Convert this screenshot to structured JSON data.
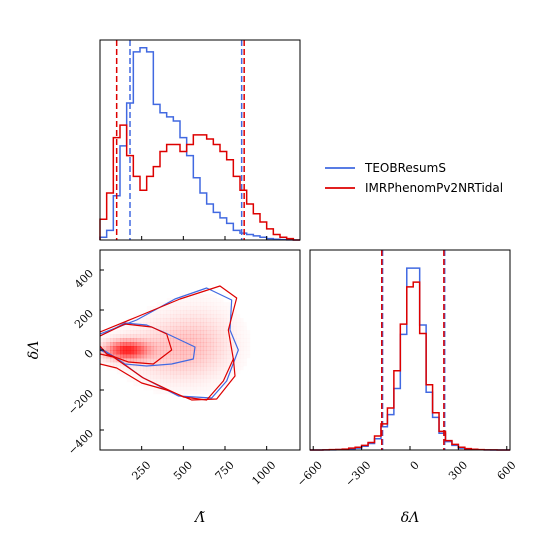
{
  "chart_data": [
    {
      "panel": "top-left",
      "type": "histogram",
      "x_param": "Λ̃",
      "xlim": [
        0,
        1200
      ],
      "xticks": [
        250,
        500,
        750,
        1000
      ],
      "bin_edges": [
        0,
        40,
        80,
        120,
        160,
        200,
        240,
        280,
        320,
        360,
        400,
        440,
        480,
        520,
        560,
        600,
        640,
        680,
        720,
        760,
        800,
        840,
        880,
        920,
        960,
        1000,
        1040,
        1080,
        1120,
        1160,
        1200
      ],
      "series": [
        {
          "name": "TEOBResumS",
          "color": "#4169e1",
          "values": [
            0.02,
            0.07,
            0.32,
            0.68,
            0.99,
            1.36,
            1.39,
            1.36,
            0.98,
            0.92,
            0.89,
            0.86,
            0.74,
            0.61,
            0.45,
            0.34,
            0.26,
            0.2,
            0.16,
            0.12,
            0.07,
            0.05,
            0.04,
            0.03,
            0.02,
            0.01,
            0.005,
            0.003,
            0.001,
            0.0
          ],
          "quantiles": [
            180,
            850
          ]
        },
        {
          "name": "IMRPhenomPv2NRTidal",
          "color": "#dd0000",
          "values": [
            0.15,
            0.34,
            0.74,
            0.83,
            0.61,
            0.46,
            0.36,
            0.46,
            0.53,
            0.64,
            0.69,
            0.69,
            0.64,
            0.69,
            0.76,
            0.76,
            0.73,
            0.69,
            0.64,
            0.58,
            0.46,
            0.36,
            0.26,
            0.19,
            0.13,
            0.08,
            0.04,
            0.02,
            0.01,
            0.0
          ],
          "values_note": "",
          "quantiles": [
            100,
            865
          ]
        }
      ]
    },
    {
      "panel": "bottom-left",
      "type": "contour",
      "xlabel": "Λ̃",
      "ylabel": "δΛ",
      "xlim": [
        0,
        1200
      ],
      "ylim": [
        -500,
        500
      ],
      "xticks": [
        250,
        500,
        750,
        1000
      ],
      "yticks": [
        -400,
        -200,
        0,
        200,
        400
      ],
      "series": [
        {
          "name": "TEOBResumS",
          "color": "#4169e1",
          "contours": [
            [
              [
                0,
                70
              ],
              [
                150,
                135
              ],
              [
                280,
                125
              ],
              [
                380,
                90
              ],
              [
                570,
                15
              ],
              [
                560,
                -45
              ],
              [
                430,
                -70
              ],
              [
                280,
                -80
              ],
              [
                150,
                -70
              ],
              [
                40,
                -10
              ],
              [
                0,
                10
              ]
            ],
            [
              [
                0,
                80
              ],
              [
                220,
                150
              ],
              [
                450,
                255
              ],
              [
                640,
                310
              ],
              [
                790,
                250
              ],
              [
                780,
                100
              ],
              [
                830,
                0
              ],
              [
                760,
                -155
              ],
              [
                670,
                -240
              ],
              [
                470,
                -230
              ],
              [
                250,
                -135
              ],
              [
                80,
                -30
              ],
              [
                0,
                0
              ]
            ]
          ]
        },
        {
          "name": "IMRPhenomPv2NRTidal",
          "color": "#dd0000",
          "contours": [
            [
              [
                0,
                70
              ],
              [
                150,
                130
              ],
              [
                310,
                115
              ],
              [
                400,
                80
              ],
              [
                430,
                0
              ],
              [
                320,
                -70
              ],
              [
                170,
                -60
              ],
              [
                40,
                -20
              ],
              [
                0,
                20
              ]
            ],
            [
              [
                0,
                90
              ],
              [
                220,
                165
              ],
              [
                480,
                255
              ],
              [
                720,
                320
              ],
              [
                820,
                260
              ],
              [
                770,
                100
              ],
              [
                800,
                -45
              ],
              [
                740,
                -155
              ],
              [
                640,
                -250
              ],
              [
                500,
                -235
              ],
              [
                260,
                -140
              ],
              [
                80,
                -35
              ],
              [
                0,
                -20
              ]
            ],
            [
              [
                0,
                -70
              ],
              [
                100,
                -90
              ],
              [
                250,
                -165
              ],
              [
                420,
                -205
              ],
              [
                550,
                -250
              ],
              [
                700,
                -245
              ],
              [
                810,
                -130
              ],
              [
                800,
                -40
              ]
            ]
          ]
        }
      ]
    },
    {
      "panel": "bottom-right",
      "type": "histogram",
      "xlabel": "δΛ",
      "xlim": [
        -620,
        620
      ],
      "xticks": [
        -600,
        -300,
        0,
        300,
        600
      ],
      "bin_edges": [
        -620,
        -580,
        -540,
        -500,
        -460,
        -420,
        -380,
        -340,
        -300,
        -260,
        -220,
        -180,
        -140,
        -100,
        -60,
        -20,
        20,
        60,
        100,
        140,
        180,
        220,
        260,
        300,
        340,
        380,
        420,
        460,
        500,
        540,
        580,
        620
      ],
      "series": [
        {
          "name": "TEOBResumS",
          "color": "#4169e1",
          "values": [
            0.0,
            0.0,
            0.001,
            0.002,
            0.004,
            0.006,
            0.01,
            0.02,
            0.04,
            0.07,
            0.12,
            0.25,
            0.38,
            0.66,
            1.24,
            1.95,
            1.95,
            1.34,
            0.62,
            0.35,
            0.18,
            0.09,
            0.05,
            0.02,
            0.01,
            0.005,
            0.003,
            0.001,
            0.0,
            0.0,
            0.0
          ],
          "quantiles": [
            -170,
            215
          ]
        },
        {
          "name": "IMRPhenomPv2NRTidal",
          "color": "#dd0000",
          "values": [
            0.0,
            0.0,
            0.002,
            0.004,
            0.006,
            0.01,
            0.02,
            0.03,
            0.05,
            0.08,
            0.15,
            0.28,
            0.45,
            0.85,
            1.35,
            1.75,
            1.8,
            1.25,
            0.7,
            0.4,
            0.2,
            0.1,
            0.06,
            0.03,
            0.015,
            0.008,
            0.004,
            0.002,
            0.001,
            0.0,
            0.0
          ],
          "quantiles": [
            -175,
            210
          ]
        }
      ]
    }
  ],
  "legend": {
    "placement": "right of bottom-right panel, upper area",
    "entries": [
      {
        "label": "TEOBResumS",
        "color": "#4169e1"
      },
      {
        "label": "IMRPhenomPv2NRTidal",
        "color": "#dd0000"
      }
    ]
  }
}
